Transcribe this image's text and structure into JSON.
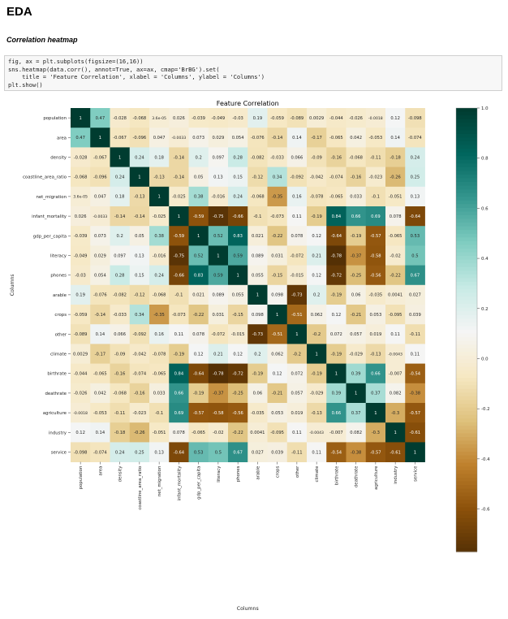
{
  "notebook": {
    "heading": "EDA",
    "subheading": "Correlation heatmap",
    "code_lines": [
      "fig, ax = plt.subplots(figsize=(16,16))",
      "sns.heatmap(data.corr(), annot=True, ax=ax, cmap='BrBG').set(",
      "    title = 'Feature Correlation', xlabel = 'Columns', ylabel = 'Columns')",
      "plt.show()"
    ]
  },
  "chart_data": {
    "type": "heatmap",
    "title": "Feature Correlation",
    "xlabel": "Columns",
    "ylabel": "Columns",
    "cmap": "BrBG",
    "colorbar_range": [
      -0.77,
      1.0
    ],
    "colorbar_ticks": [
      "1.0",
      "0.8",
      "0.6",
      "0.4",
      "0.2",
      "0.0",
      "-0.2",
      "-0.4",
      "-0.6"
    ],
    "colorbar_tick_values": [
      1.0,
      0.8,
      0.6,
      0.4,
      0.2,
      0.0,
      -0.2,
      -0.4,
      -0.6
    ],
    "labels": [
      "population",
      "area",
      "density",
      "coastline_area_ratio",
      "net_migration",
      "infant_mortality",
      "gdp_per_capita",
      "literacy",
      "phones",
      "arable",
      "crops",
      "other",
      "climate",
      "birthrate",
      "deathrate",
      "agriculture",
      "industry",
      "service"
    ],
    "annotations": [
      [
        "1",
        "0.47",
        "-0.028",
        "-0.068",
        "3.6e-05",
        "0.026",
        "-0.039",
        "-0.049",
        "-0.03",
        "0.19",
        "-0.059",
        "-0.089",
        "0.0029",
        "-0.044",
        "-0.026",
        "-0.0018",
        "0.12",
        "-0.098"
      ],
      [
        "0.47",
        "1",
        "-0.067",
        "-0.096",
        "0.047",
        "-0.0033",
        "0.073",
        "0.029",
        "0.054",
        "-0.076",
        "-0.14",
        "0.14",
        "-0.17",
        "-0.065",
        "0.042",
        "-0.053",
        "0.14",
        "-0.074"
      ],
      [
        "-0.028",
        "-0.067",
        "1",
        "0.24",
        "0.18",
        "-0.14",
        "0.2",
        "0.097",
        "0.28",
        "-0.082",
        "-0.033",
        "0.066",
        "-0.09",
        "-0.16",
        "-0.068",
        "-0.11",
        "-0.18",
        "0.24"
      ],
      [
        "-0.068",
        "-0.096",
        "0.24",
        "1",
        "-0.13",
        "-0.14",
        "0.05",
        "0.13",
        "0.15",
        "-0.12",
        "0.34",
        "-0.092",
        "-0.042",
        "-0.074",
        "-0.16",
        "-0.023",
        "-0.26",
        "0.25"
      ],
      [
        "3.6e-05",
        "0.047",
        "0.18",
        "-0.13",
        "1",
        "-0.025",
        "0.38",
        "-0.016",
        "0.24",
        "-0.068",
        "-0.35",
        "0.16",
        "-0.078",
        "-0.065",
        "0.033",
        "-0.1",
        "-0.051",
        "0.13"
      ],
      [
        "0.026",
        "-0.0033",
        "-0.14",
        "-0.14",
        "-0.025",
        "1",
        "-0.59",
        "-0.75",
        "-0.66",
        "-0.1",
        "-0.073",
        "0.11",
        "-0.19",
        "0.84",
        "0.66",
        "0.69",
        "0.078",
        "-0.64"
      ],
      [
        "-0.039",
        "0.073",
        "0.2",
        "0.05",
        "0.38",
        "-0.59",
        "1",
        "0.52",
        "0.83",
        "0.021",
        "-0.22",
        "0.078",
        "0.12",
        "-0.64",
        "-0.19",
        "-0.57",
        "-0.065",
        "0.53"
      ],
      [
        "-0.049",
        "0.029",
        "0.097",
        "0.13",
        "-0.016",
        "-0.75",
        "0.52",
        "1",
        "0.59",
        "0.089",
        "0.031",
        "-0.072",
        "0.21",
        "-0.78",
        "-0.37",
        "-0.58",
        "-0.02",
        "0.5"
      ],
      [
        "-0.03",
        "0.054",
        "0.28",
        "0.15",
        "0.24",
        "-0.66",
        "0.83",
        "0.59",
        "1",
        "0.055",
        "-0.15",
        "-0.015",
        "0.12",
        "-0.72",
        "-0.25",
        "-0.56",
        "-0.22",
        "0.67"
      ],
      [
        "0.19",
        "-0.076",
        "-0.082",
        "-0.12",
        "-0.068",
        "-0.1",
        "0.021",
        "0.089",
        "0.055",
        "1",
        "0.098",
        "-0.73",
        "0.2",
        "-0.19",
        "0.06",
        "-0.035",
        "0.0041",
        "0.027"
      ],
      [
        "-0.059",
        "-0.14",
        "-0.033",
        "0.34",
        "-0.35",
        "-0.073",
        "-0.22",
        "0.031",
        "-0.15",
        "0.098",
        "1",
        "-0.51",
        "0.062",
        "0.12",
        "-0.21",
        "0.053",
        "-0.095",
        "0.039"
      ],
      [
        "-0.089",
        "0.14",
        "0.066",
        "-0.092",
        "0.16",
        "0.11",
        "0.078",
        "-0.072",
        "-0.015",
        "-0.73",
        "-0.51",
        "1",
        "-0.2",
        "0.072",
        "0.057",
        "0.019",
        "0.11",
        "-0.11"
      ],
      [
        "0.0029",
        "-0.17",
        "-0.09",
        "-0.042",
        "-0.078",
        "-0.19",
        "0.12",
        "0.21",
        "0.12",
        "0.2",
        "0.062",
        "-0.2",
        "1",
        "-0.19",
        "-0.029",
        "-0.13",
        "-0.0043",
        "0.11"
      ],
      [
        "-0.044",
        "-0.065",
        "-0.16",
        "-0.074",
        "-0.065",
        "0.84",
        "-0.64",
        "-0.78",
        "-0.72",
        "-0.19",
        "0.12",
        "0.072",
        "-0.19",
        "1",
        "0.39",
        "0.66",
        "-0.007",
        "-0.54"
      ],
      [
        "-0.026",
        "0.042",
        "-0.068",
        "-0.16",
        "0.033",
        "0.66",
        "-0.19",
        "-0.37",
        "-0.25",
        "0.06",
        "-0.21",
        "0.057",
        "-0.029",
        "0.39",
        "1",
        "0.37",
        "0.082",
        "-0.38"
      ],
      [
        "-0.0018",
        "-0.053",
        "-0.11",
        "-0.023",
        "-0.1",
        "0.69",
        "-0.57",
        "-0.58",
        "-0.56",
        "-0.035",
        "0.053",
        "0.019",
        "-0.13",
        "0.66",
        "0.37",
        "1",
        "-0.3",
        "-0.57"
      ],
      [
        "0.12",
        "0.14",
        "-0.18",
        "-0.26",
        "-0.051",
        "0.078",
        "-0.065",
        "-0.02",
        "-0.22",
        "0.0041",
        "-0.095",
        "0.11",
        "-0.0043",
        "-0.007",
        "0.082",
        "-0.3",
        "1",
        "-0.61"
      ],
      [
        "-0.098",
        "-0.074",
        "0.24",
        "0.25",
        "0.13",
        "-0.64",
        "0.53",
        "0.5",
        "0.67",
        "0.027",
        "0.039",
        "-0.11",
        "0.11",
        "-0.54",
        "-0.38",
        "-0.57",
        "-0.61",
        "1"
      ]
    ]
  }
}
